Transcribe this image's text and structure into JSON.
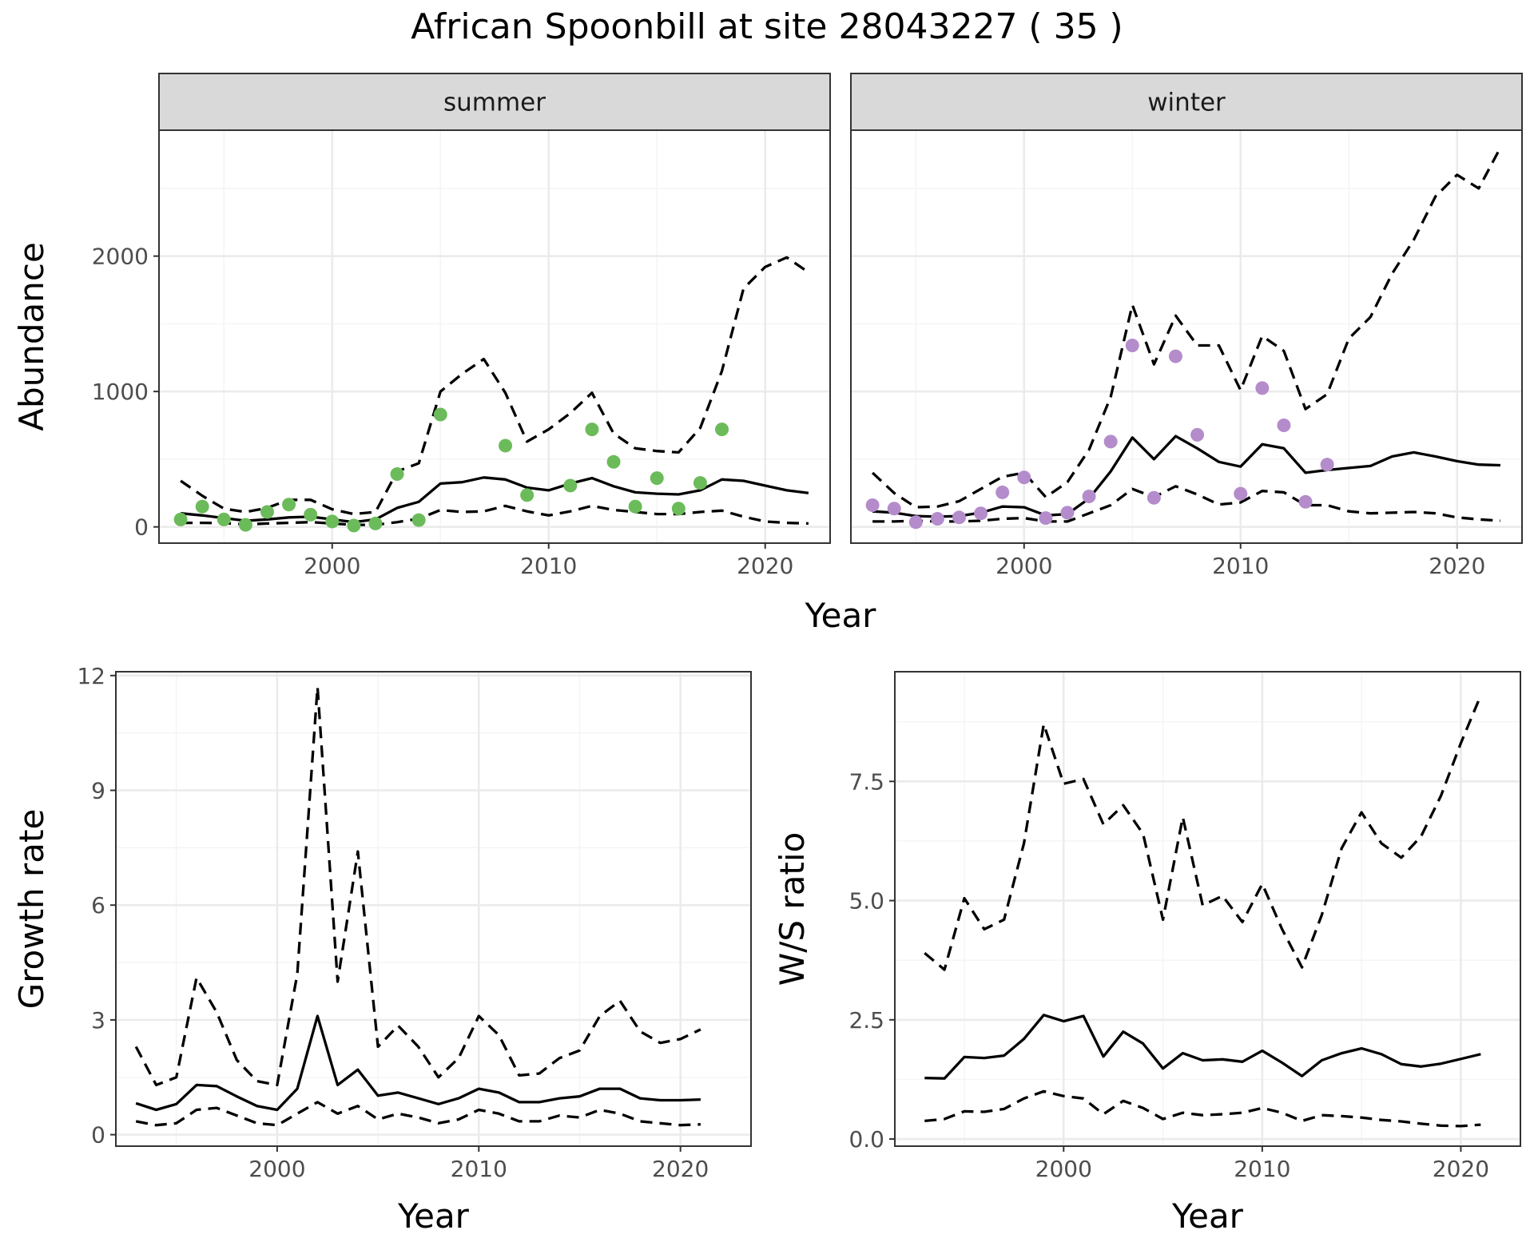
{
  "title": "African Spoonbill at site 28043227 ( 35 )",
  "colors": {
    "summer_points": "#6bbb5a",
    "winter_points": "#b48ccb",
    "lines": "#000000",
    "grid_major": "#ebebeb",
    "panel_border": "#333333",
    "strip_fill": "#d9d9d9",
    "tick_text": "#4d4d4d"
  },
  "chart_data": [
    {
      "type": "line",
      "panel": "abundance-summer",
      "facet_label": "summer",
      "xlabel": "Year",
      "ylabel": "Abundance",
      "xlim": [
        1992,
        2023
      ],
      "ylim": [
        -120,
        2930
      ],
      "x_ticks": [
        2000,
        2010,
        2020
      ],
      "y_ticks": [
        0,
        1000,
        2000
      ],
      "grid": true,
      "x": [
        1993,
        1994,
        1995,
        1996,
        1997,
        1998,
        1999,
        2000,
        2001,
        2002,
        2003,
        2004,
        2005,
        2006,
        2007,
        2008,
        2009,
        2010,
        2011,
        2012,
        2013,
        2014,
        2015,
        2016,
        2017,
        2018,
        2019,
        2020,
        2021,
        2022
      ],
      "series": [
        {
          "role": "estimate",
          "style": "solid",
          "values": [
            100,
            85,
            65,
            45,
            55,
            70,
            75,
            55,
            35,
            55,
            140,
            185,
            320,
            330,
            365,
            350,
            290,
            270,
            320,
            360,
            300,
            255,
            245,
            240,
            270,
            350,
            340,
            305,
            270,
            250
          ]
        },
        {
          "role": "upper",
          "style": "dashed",
          "values": [
            340,
            230,
            135,
            110,
            140,
            200,
            200,
            130,
            95,
            110,
            410,
            470,
            1000,
            1130,
            1240,
            990,
            630,
            720,
            840,
            990,
            690,
            580,
            560,
            550,
            730,
            1150,
            1760,
            1920,
            1990,
            1880
          ]
        },
        {
          "role": "lower",
          "style": "dashed",
          "values": [
            30,
            30,
            28,
            18,
            25,
            30,
            35,
            25,
            15,
            15,
            35,
            60,
            125,
            110,
            115,
            155,
            115,
            85,
            115,
            155,
            125,
            110,
            95,
            95,
            110,
            120,
            75,
            40,
            30,
            25
          ]
        }
      ],
      "points": {
        "x": [
          1993,
          1994,
          1995,
          1996,
          1997,
          1998,
          1999,
          2000,
          2001,
          2002,
          2003,
          2004,
          2005,
          2008,
          2009,
          2011,
          2012,
          2013,
          2014,
          2015,
          2016,
          2017,
          2018
        ],
        "y": [
          55,
          150,
          55,
          15,
          110,
          165,
          90,
          40,
          10,
          25,
          390,
          50,
          830,
          600,
          235,
          305,
          720,
          480,
          150,
          360,
          135,
          325,
          720
        ]
      }
    },
    {
      "type": "line",
      "panel": "abundance-winter",
      "facet_label": "winter",
      "xlabel": "Year",
      "ylabel": "Abundance",
      "xlim": [
        1992,
        2023
      ],
      "ylim": [
        -120,
        2930
      ],
      "x_ticks": [
        2000,
        2010,
        2020
      ],
      "y_ticks": [
        0,
        1000,
        2000
      ],
      "grid": true,
      "x": [
        1993,
        1994,
        1995,
        1996,
        1997,
        1998,
        1999,
        2000,
        2001,
        2002,
        2003,
        2004,
        2005,
        2006,
        2007,
        2008,
        2009,
        2010,
        2011,
        2012,
        2013,
        2014,
        2015,
        2016,
        2017,
        2018,
        2019,
        2020,
        2021,
        2022
      ],
      "series": [
        {
          "role": "estimate",
          "style": "solid",
          "values": [
            115,
            105,
            80,
            75,
            80,
            105,
            150,
            145,
            85,
            95,
            210,
            410,
            660,
            500,
            670,
            580,
            480,
            445,
            610,
            580,
            400,
            420,
            435,
            450,
            520,
            550,
            520,
            485,
            460,
            455
          ]
        },
        {
          "role": "upper",
          "style": "dashed",
          "values": [
            400,
            250,
            145,
            150,
            190,
            280,
            370,
            400,
            220,
            330,
            570,
            960,
            1640,
            1200,
            1560,
            1340,
            1340,
            1010,
            1410,
            1300,
            870,
            980,
            1390,
            1550,
            1870,
            2120,
            2440,
            2600,
            2500,
            2800
          ]
        },
        {
          "role": "lower",
          "style": "dashed",
          "values": [
            40,
            40,
            45,
            40,
            40,
            45,
            60,
            65,
            40,
            40,
            100,
            160,
            280,
            220,
            300,
            240,
            165,
            180,
            265,
            255,
            160,
            160,
            115,
            100,
            105,
            110,
            100,
            70,
            55,
            45
          ]
        }
      ],
      "points": {
        "x": [
          1993,
          1994,
          1995,
          1996,
          1997,
          1998,
          1999,
          2000,
          2001,
          2002,
          2003,
          2004,
          2005,
          2006,
          2007,
          2008,
          2010,
          2011,
          2012,
          2013,
          2014
        ],
        "y": [
          160,
          135,
          35,
          60,
          70,
          100,
          255,
          365,
          65,
          105,
          225,
          630,
          1340,
          215,
          1260,
          680,
          245,
          1025,
          750,
          185,
          460
        ]
      }
    },
    {
      "type": "line",
      "panel": "growth-rate",
      "xlabel": "Year",
      "ylabel": "Growth rate",
      "xlim": [
        1992,
        2023.5
      ],
      "ylim": [
        -0.3,
        12.1
      ],
      "x_ticks": [
        2000,
        2010,
        2020
      ],
      "y_ticks": [
        0,
        3,
        6,
        9,
        12
      ],
      "grid": true,
      "x": [
        1993,
        1994,
        1995,
        1996,
        1997,
        1998,
        1999,
        2000,
        2001,
        2002,
        2003,
        2004,
        2005,
        2006,
        2007,
        2008,
        2009,
        2010,
        2011,
        2012,
        2013,
        2014,
        2015,
        2016,
        2017,
        2018,
        2019,
        2020,
        2021
      ],
      "series": [
        {
          "role": "estimate",
          "style": "solid",
          "values": [
            0.82,
            0.65,
            0.8,
            1.3,
            1.27,
            1.0,
            0.75,
            0.65,
            1.2,
            3.1,
            1.3,
            1.7,
            1.02,
            1.1,
            0.95,
            0.8,
            0.95,
            1.2,
            1.1,
            0.85,
            0.85,
            0.95,
            1.0,
            1.2,
            1.2,
            0.95,
            0.9,
            0.9,
            0.92
          ]
        },
        {
          "role": "upper",
          "style": "dashed",
          "values": [
            2.3,
            1.3,
            1.5,
            4.1,
            3.2,
            1.95,
            1.4,
            1.3,
            4.2,
            11.7,
            4.0,
            7.4,
            2.3,
            2.85,
            2.3,
            1.5,
            2.0,
            3.1,
            2.6,
            1.55,
            1.6,
            2.0,
            2.2,
            3.1,
            3.5,
            2.7,
            2.4,
            2.5,
            2.75
          ]
        },
        {
          "role": "lower",
          "style": "dashed",
          "values": [
            0.35,
            0.25,
            0.3,
            0.65,
            0.7,
            0.5,
            0.3,
            0.25,
            0.55,
            0.85,
            0.55,
            0.75,
            0.4,
            0.55,
            0.45,
            0.3,
            0.4,
            0.65,
            0.55,
            0.35,
            0.35,
            0.5,
            0.45,
            0.65,
            0.55,
            0.35,
            0.3,
            0.25,
            0.27
          ]
        }
      ]
    },
    {
      "type": "line",
      "panel": "ws-ratio",
      "xlabel": "Year",
      "ylabel": "W/S ratio",
      "xlim": [
        1991.5,
        2023
      ],
      "ylim": [
        -0.15,
        9.8
      ],
      "x_ticks": [
        2000,
        2010,
        2020
      ],
      "y_ticks": [
        0.0,
        2.5,
        5.0,
        7.5
      ],
      "y_tick_labels": [
        "0.0",
        "2.5",
        "5.0",
        "7.5"
      ],
      "grid": true,
      "x": [
        1993,
        1994,
        1995,
        1996,
        1997,
        1998,
        1999,
        2000,
        2001,
        2002,
        2003,
        2004,
        2005,
        2006,
        2007,
        2008,
        2009,
        2010,
        2011,
        2012,
        2013,
        2014,
        2015,
        2016,
        2017,
        2018,
        2019,
        2020,
        2021
      ],
      "series": [
        {
          "role": "estimate",
          "style": "solid",
          "values": [
            1.28,
            1.27,
            1.72,
            1.7,
            1.75,
            2.1,
            2.6,
            2.47,
            2.58,
            1.73,
            2.25,
            2.0,
            1.48,
            1.8,
            1.65,
            1.67,
            1.62,
            1.85,
            1.6,
            1.32,
            1.65,
            1.8,
            1.9,
            1.78,
            1.57,
            1.52,
            1.58,
            1.68,
            1.78
          ]
        },
        {
          "role": "upper",
          "style": "dashed",
          "values": [
            3.9,
            3.55,
            5.05,
            4.4,
            4.6,
            6.2,
            8.7,
            7.45,
            7.55,
            6.6,
            7.0,
            6.4,
            4.6,
            6.75,
            4.9,
            5.1,
            4.55,
            5.35,
            4.4,
            3.6,
            4.7,
            6.1,
            6.85,
            6.2,
            5.9,
            6.35,
            7.2,
            8.3,
            9.3
          ]
        },
        {
          "role": "lower",
          "style": "dashed",
          "values": [
            0.38,
            0.42,
            0.58,
            0.57,
            0.63,
            0.85,
            1.0,
            0.9,
            0.85,
            0.52,
            0.8,
            0.65,
            0.42,
            0.55,
            0.5,
            0.52,
            0.55,
            0.65,
            0.55,
            0.38,
            0.5,
            0.48,
            0.45,
            0.4,
            0.37,
            0.32,
            0.28,
            0.27,
            0.3
          ]
        }
      ]
    }
  ]
}
